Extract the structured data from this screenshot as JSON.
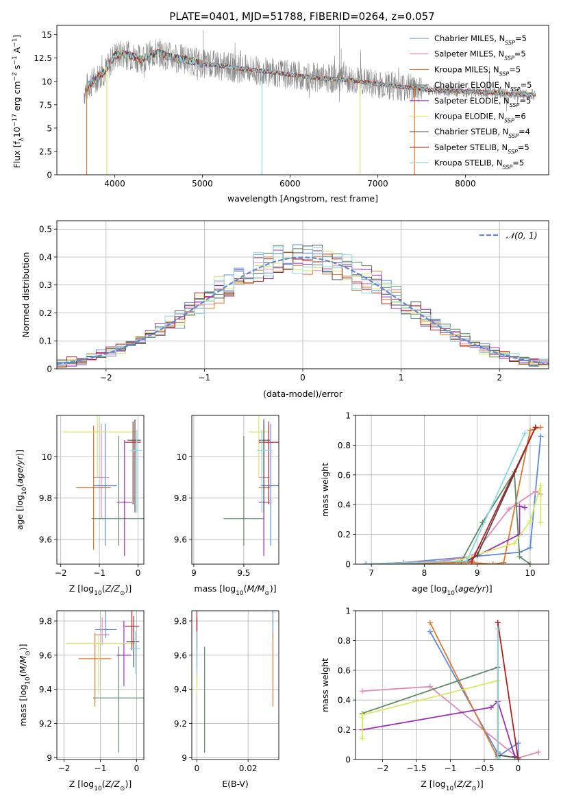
{
  "figure": {
    "title": "PLATE=0401, MJD=51788, FIBERID=0264, z=0.057"
  },
  "colors": {
    "Chabrier MILES": "#5b88d8",
    "Salpeter MILES": "#e189b8",
    "Kroupa MILES": "#e0772a",
    "Chabrier ELODIE": "#5a8a64",
    "Salpeter ELODIE": "#9b30b6",
    "Kroupa ELODIE": "#d7ea5c",
    "Chabrier STELIB": "#4b4b4b",
    "Salpeter STELIB": "#b51d1d",
    "Kroupa STELIB": "#86d8e3",
    "data": "#888888",
    "normal": "#5b88d8"
  },
  "chart_data": [
    {
      "id": "spectrum",
      "type": "line",
      "title": "PLATE=0401, MJD=51788, FIBERID=0264, z=0.057",
      "xlabel": "wavelength [Angstrom, rest frame]",
      "ylabel": "Flux [f_λ 10^-17 erg cm^-2 s^-1 A^-1]",
      "xlim": [
        3340,
        8950
      ],
      "ylim": [
        0,
        16
      ],
      "xticks": [
        4000,
        5000,
        6000,
        7000,
        8000
      ],
      "yticks": [
        0.0,
        2.5,
        5.0,
        7.5,
        10.0,
        12.5,
        15.0
      ],
      "grid": false,
      "legend_position": "top-right",
      "legend": [
        {
          "name": "Chabrier MILES",
          "nssp": "5"
        },
        {
          "name": "Salpeter MILES",
          "nssp": "5"
        },
        {
          "name": "Kroupa MILES",
          "nssp": "5"
        },
        {
          "name": "Chabrier ELODIE",
          "nssp": "5"
        },
        {
          "name": "Salpeter ELODIE",
          "nssp": "5"
        },
        {
          "name": "Kroupa ELODIE",
          "nssp": "6"
        },
        {
          "name": "Chabrier STELIB",
          "nssp": "4"
        },
        {
          "name": "Salpeter STELIB",
          "nssp": "5"
        },
        {
          "name": "Kroupa STELIB",
          "nssp": "5"
        }
      ],
      "continuum": {
        "x": [
          3650,
          3700,
          3800,
          3900,
          4000,
          4100,
          4200,
          4300,
          4400,
          4500,
          4600,
          4700,
          4800,
          4900,
          5000,
          5200,
          5400,
          5600,
          5800,
          6000,
          6200,
          6400,
          6600,
          6800,
          7000,
          7200,
          7400,
          7600,
          7800,
          8000,
          8200,
          8400,
          8600,
          8800
        ],
        "y": [
          8.8,
          9.6,
          10.4,
          11.2,
          12.8,
          12.9,
          12.7,
          12.4,
          12.8,
          13.1,
          12.7,
          12.5,
          12.4,
          12.1,
          11.9,
          11.7,
          11.4,
          11.2,
          11.0,
          10.7,
          10.5,
          10.3,
          10.2,
          10.0,
          9.7,
          9.5,
          9.3,
          9.1,
          9.0,
          8.9,
          8.9,
          8.7,
          8.6,
          8.6
        ]
      }
    },
    {
      "id": "residuals",
      "type": "histogram",
      "xlabel": "(data-model)/error",
      "ylabel": "Normed distribution",
      "xlim": [
        -2.5,
        2.5
      ],
      "ylim": [
        0,
        0.53
      ],
      "xticks": [
        -2,
        -1,
        0,
        1,
        2
      ],
      "yticks": [
        0.0,
        0.1,
        0.2,
        0.3,
        0.4,
        0.5
      ],
      "grid": true,
      "legend_position": "top-right",
      "legend_label": "𝒩(0, 1)",
      "bin_width": 0.1
    },
    {
      "id": "age-vs-Z",
      "type": "errorbar",
      "xlabel": "Z [log10(Z/Z⊙)]",
      "ylabel": "age  [log10(age/yr)]",
      "xlim": [
        -2.1,
        0.15
      ],
      "ylim": [
        9.48,
        10.2
      ],
      "xticks": [
        -2,
        -1,
        0
      ],
      "yticks": [
        9.6,
        9.8,
        10.0
      ],
      "grid": true
    },
    {
      "id": "age-vs-mass",
      "type": "errorbar",
      "xlabel": "mass [log10(M/M⊙)]",
      "ylabel": "",
      "xlim": [
        8.98,
        9.85
      ],
      "ylim": [
        9.48,
        10.2
      ],
      "xticks": [
        9.0,
        9.5
      ],
      "yticks": [
        9.6,
        9.8,
        10.0
      ],
      "grid": true
    },
    {
      "id": "weight-vs-age",
      "type": "line",
      "xlabel": "age  [log10(age/yr)]",
      "ylabel": "mass weight",
      "xlim": [
        6.7,
        10.35
      ],
      "ylim": [
        0,
        1
      ],
      "xticks": [
        7,
        8,
        9,
        10
      ],
      "yticks": [
        0.0,
        0.2,
        0.4,
        0.6,
        0.8,
        1.0
      ],
      "grid": true
    },
    {
      "id": "mass-vs-Z",
      "type": "errorbar",
      "xlabel": "Z [log10(Z/Z⊙)]",
      "ylabel": "mass [log10(M/M⊙)]",
      "xlim": [
        -2.2,
        0.2
      ],
      "ylim": [
        8.99,
        9.86
      ],
      "xticks": [
        -2,
        -1,
        0
      ],
      "yticks": [
        9.0,
        9.2,
        9.4,
        9.6,
        9.8
      ],
      "grid": true
    },
    {
      "id": "mass-vs-ebv",
      "type": "errorbar",
      "xlabel": "E(B-V)",
      "ylabel": "",
      "xlim": [
        -0.002,
        0.032
      ],
      "ylim": [
        8.99,
        9.86
      ],
      "xticks": [
        0.0,
        0.02
      ],
      "yticks": [
        9.0,
        9.2,
        9.4,
        9.6,
        9.8
      ],
      "grid": true
    },
    {
      "id": "weight-vs-Z",
      "type": "line",
      "xlabel": "Z [log10(Z/Z⊙)]",
      "ylabel": "mass weight",
      "xlim": [
        -2.4,
        0.45
      ],
      "ylim": [
        0,
        1
      ],
      "xticks": [
        -2.0,
        -1.5,
        -1.0,
        -0.5,
        0.0
      ],
      "yticks": [
        0.0,
        0.2,
        0.4,
        0.6,
        0.8,
        1.0
      ],
      "grid": true
    }
  ],
  "models": [
    {
      "name": "Chabrier MILES",
      "Z": [
        -0.85,
        0.3,
        0.3
      ],
      "Zlo": [
        -1.0,
        0.45,
        0.45
      ],
      "age": [
        9.86,
        0.29,
        0.3
      ],
      "mass": [
        9.75,
        0.05,
        0.2
      ],
      "ebv": [
        0.0297,
        0.0,
        0.0
      ],
      "mass_age": [
        9.77,
        0.1,
        0.1
      ],
      "w_age": [
        [
          6.9,
          0.0
        ],
        [
          7.6,
          0.01
        ],
        [
          8.9,
          0.05
        ],
        [
          9.8,
          0.08
        ],
        [
          10.0,
          0.11
        ],
        [
          10.2,
          0.86
        ]
      ],
      "w_Z": [
        [
          -1.3,
          0.86
        ],
        [
          -0.3,
          0.04
        ],
        [
          -0.3,
          0.02
        ],
        [
          0.0,
          0.11
        ],
        [
          0.0,
          0.0
        ]
      ]
    },
    {
      "name": "Salpeter MILES",
      "Z": [
        -0.95,
        0.2,
        0.2
      ],
      "age": [
        9.9,
        0.2,
        0.26
      ],
      "mass": [
        9.72,
        0.06,
        0.1
      ],
      "ebv": [
        0.0,
        0.0,
        0.0
      ],
      "mass_age": [
        9.7,
        0.05,
        0.06
      ],
      "w_age": [
        [
          6.9,
          0.0
        ],
        [
          8.3,
          0.02
        ],
        [
          8.9,
          0.05
        ],
        [
          9.6,
          0.37
        ],
        [
          10.1,
          0.49
        ],
        [
          10.2,
          0.47
        ]
      ],
      "w_Z": [
        [
          -2.3,
          0.46
        ],
        [
          -1.3,
          0.49
        ],
        [
          0.0,
          0.01
        ],
        [
          0.3,
          0.05
        ]
      ]
    },
    {
      "name": "Kroupa MILES",
      "Z": [
        -1.15,
        0.45,
        0.45
      ],
      "age": [
        9.85,
        0.3,
        0.3
      ],
      "mass": [
        9.58,
        0.28,
        0.15
      ],
      "ebv": [
        0.0297,
        0.0,
        0.0
      ],
      "mass_age": [
        9.7,
        0.05,
        0.06
      ],
      "w_age": [
        [
          6.9,
          0.0
        ],
        [
          8.9,
          0.01
        ],
        [
          9.3,
          0.0
        ],
        [
          9.5,
          0.01
        ],
        [
          10.0,
          0.9
        ],
        [
          10.2,
          0.92
        ]
      ],
      "w_Z": [
        [
          -1.3,
          0.92
        ],
        [
          -0.3,
          0.01
        ],
        [
          -0.3,
          0.0
        ]
      ]
    },
    {
      "name": "Chabrier ELODIE",
      "Z": [
        -0.5,
        0.7,
        0.7
      ],
      "age": [
        9.7,
        0.13,
        0.4
      ],
      "mass": [
        9.35,
        0.32,
        0.3
      ],
      "ebv": [
        0.003,
        0.0,
        0.0
      ],
      "mass_age": [
        9.5,
        0.2,
        0.2
      ],
      "w_age": [
        [
          6.9,
          0.0
        ],
        [
          8.7,
          0.02
        ],
        [
          9.1,
          0.28
        ],
        [
          9.7,
          0.62
        ],
        [
          9.8,
          0.05
        ],
        [
          10.0,
          0.0
        ]
      ],
      "w_Z": [
        [
          -2.3,
          0.31
        ],
        [
          -0.3,
          0.62
        ],
        [
          -0.3,
          0.05
        ]
      ]
    },
    {
      "name": "Salpeter ELODIE",
      "Z": [
        -0.35,
        0.2,
        0.2
      ],
      "age": [
        9.78,
        0.26,
        0.3
      ],
      "mass": [
        9.6,
        0.18,
        0.2
      ],
      "ebv": [
        0.0,
        0.0,
        0.0
      ],
      "mass_age": [
        9.7,
        0.05,
        0.06
      ],
      "w_age": [
        [
          6.9,
          0.0
        ],
        [
          8.8,
          0.02
        ],
        [
          9.8,
          0.2
        ],
        [
          9.8,
          0.39
        ],
        [
          9.9,
          0.38
        ]
      ],
      "w_Z": [
        [
          -2.3,
          0.2
        ],
        [
          -0.4,
          0.35
        ],
        [
          -0.3,
          0.39
        ],
        [
          -0.05,
          0.02
        ]
      ]
    },
    {
      "name": "Kroupa ELODIE",
      "Z": [
        -1.05,
        0.9,
        1.0
      ],
      "age": [
        10.12,
        0.22,
        0.1
      ],
      "mass": [
        9.67,
        0.3,
        0.05
      ],
      "ebv": [
        0.0,
        0.0,
        0.0
      ],
      "mass_age": [
        9.65,
        0.1,
        0.1
      ],
      "w_age": [
        [
          6.9,
          0.0
        ],
        [
          8.6,
          0.02
        ],
        [
          9.7,
          0.14
        ],
        [
          10.0,
          0.29
        ],
        [
          10.2,
          0.53
        ],
        [
          10.2,
          0.28
        ]
      ],
      "w_Z": [
        [
          -2.3,
          0.28
        ],
        [
          -2.3,
          0.14
        ],
        [
          -2.3,
          0.3
        ],
        [
          -0.3,
          0.53
        ],
        [
          -0.3,
          0.0
        ]
      ]
    },
    {
      "name": "Chabrier STELIB",
      "Z": [
        -0.08,
        0.2,
        0.15
      ],
      "age": [
        10.08,
        0.35,
        0.1
      ],
      "mass": [
        9.68,
        0.15,
        0.15
      ],
      "ebv": [
        0.0,
        0.0,
        0.0
      ],
      "mass_age": [
        9.7,
        0.05,
        0.06
      ],
      "w_age": [
        [
          6.9,
          0.0
        ],
        [
          8.8,
          0.02
        ],
        [
          9.0,
          0.06
        ],
        [
          10.1,
          0.92
        ]
      ],
      "w_Z": [
        [
          -0.3,
          0.92
        ],
        [
          -0.3,
          0.03
        ],
        [
          0.0,
          0.01
        ]
      ]
    },
    {
      "name": "Salpeter STELIB",
      "Z": [
        -0.13,
        0.2,
        0.2
      ],
      "age": [
        10.07,
        0.3,
        0.1
      ],
      "mass": [
        9.77,
        0.14,
        0.1
      ],
      "ebv": [
        0.0,
        0.0,
        0.0
      ],
      "mass_age": [
        9.75,
        0.1,
        0.1
      ],
      "w_age": [
        [
          6.9,
          0.0
        ],
        [
          8.9,
          0.02
        ],
        [
          10.1,
          0.92
        ]
      ],
      "w_Z": [
        [
          -0.3,
          0.92
        ],
        [
          0.0,
          0.0
        ]
      ]
    },
    {
      "name": "Kroupa STELIB",
      "Z": [
        -0.03,
        0.17,
        0.13
      ],
      "age": [
        10.03,
        0.3,
        0.1
      ],
      "mass": [
        9.64,
        0.15,
        0.1
      ],
      "ebv": [
        0.0,
        0.0,
        0.0
      ],
      "mass_age": [
        9.68,
        0.05,
        0.1
      ],
      "w_age": [
        [
          6.9,
          0.0
        ],
        [
          8.8,
          0.02
        ],
        [
          9.9,
          0.88
        ]
      ],
      "w_Z": [
        [
          -0.3,
          0.88
        ],
        [
          -0.3,
          0.01
        ]
      ]
    }
  ]
}
